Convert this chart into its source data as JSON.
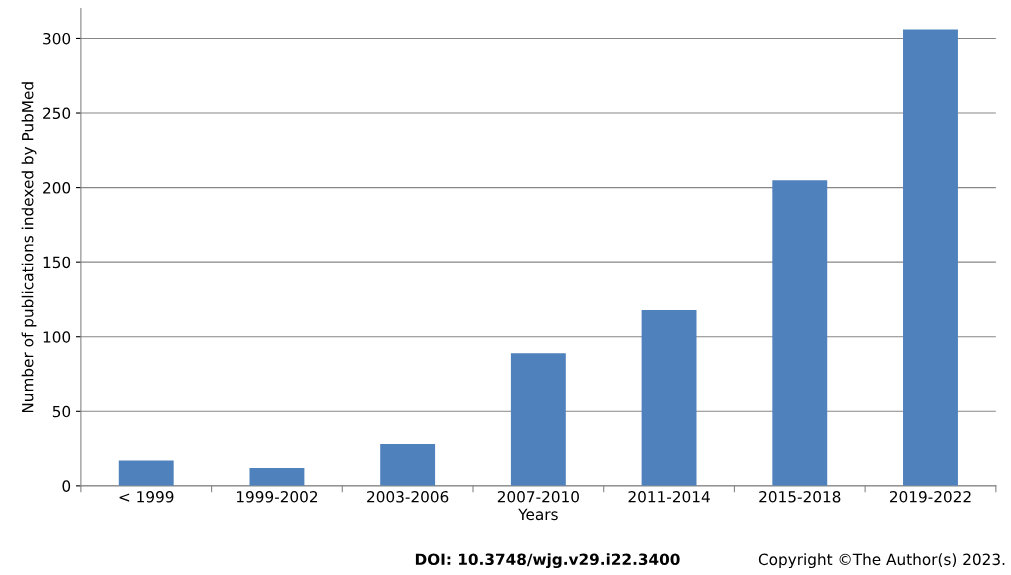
{
  "chart_data": {
    "type": "bar",
    "xlabel": "Years",
    "ylabel": "Number of publications indexed by PubMed",
    "categories": [
      "< 1999",
      "1999-2002",
      "2003-2006",
      "2007-2010",
      "2011-2014",
      "2015-2018",
      "2019-2022"
    ],
    "values": [
      17,
      12,
      28,
      89,
      118,
      205,
      306
    ],
    "color": "#4f81bd",
    "ylim": [
      0,
      320
    ],
    "yticks": [
      0,
      50,
      100,
      150,
      200,
      250,
      300
    ],
    "grid": "y",
    "annotations": [
      "DOI: 10.3748/wjg.v29.i22.3400",
      "Copyright ©The Author(s) 2023."
    ]
  }
}
